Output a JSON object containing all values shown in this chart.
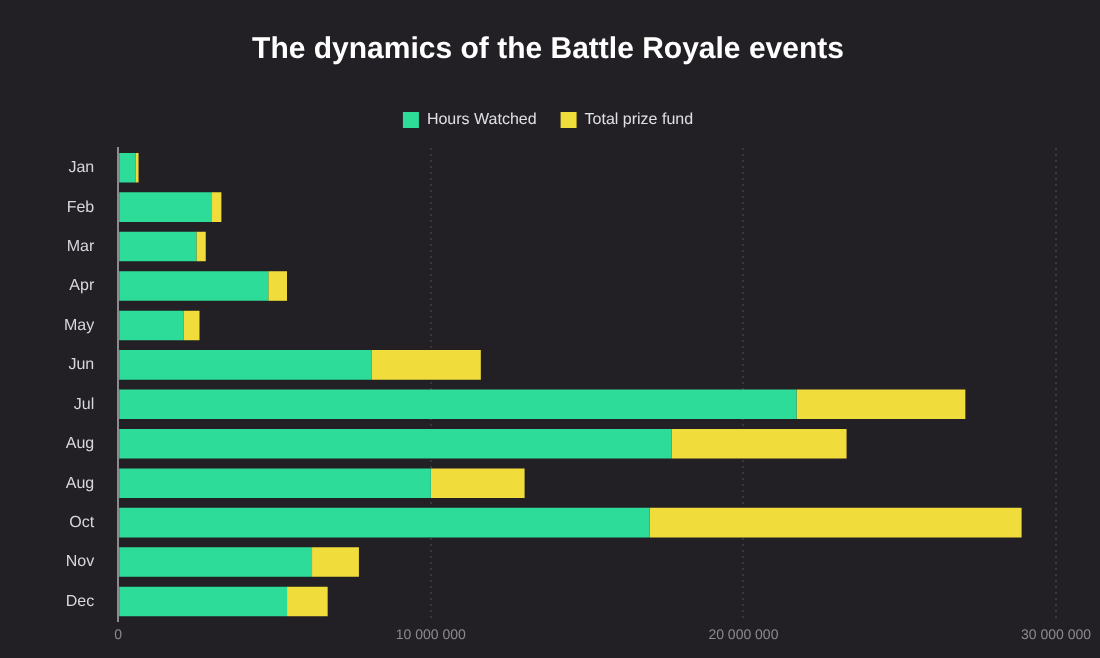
{
  "chart_data": {
    "type": "bar",
    "orientation": "horizontal",
    "stacked": true,
    "title": "The dynamics of the Battle Royale events",
    "categories": [
      "Jan",
      "Feb",
      "Mar",
      "Apr",
      "May",
      "Jun",
      "Jul",
      "Aug",
      "Aug",
      "Oct",
      "Nov",
      "Dec"
    ],
    "series": [
      {
        "name": "Hours Watched",
        "color": "#2ddc98",
        "values": [
          550000,
          3000000,
          2500000,
          4800000,
          2100000,
          8100000,
          21700000,
          17700000,
          10000000,
          17000000,
          6200000,
          5400000
        ]
      },
      {
        "name": "Total prize fund",
        "color": "#f0dc3a",
        "values": [
          100000,
          300000,
          300000,
          600000,
          500000,
          3500000,
          5400000,
          5600000,
          3000000,
          11900000,
          1500000,
          1300000
        ]
      }
    ],
    "xlim": [
      0,
      30000000
    ],
    "xticks": [
      {
        "value": 0,
        "label": "0"
      },
      {
        "value": 10000000,
        "label": "10 000 000"
      },
      {
        "value": 20000000,
        "label": "20 000 000"
      },
      {
        "value": 30000000,
        "label": "30 000 000"
      }
    ],
    "grid": "x",
    "legend": "top"
  }
}
